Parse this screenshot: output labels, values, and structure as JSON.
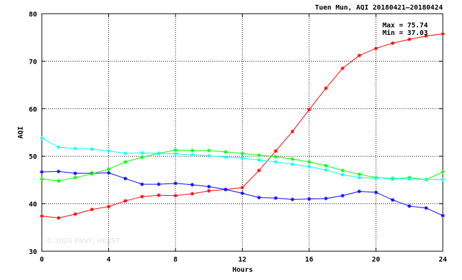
{
  "chart_data": {
    "type": "line",
    "title": "Tuen Mun, AQI 20180421–20180424",
    "xlabel": "Hours",
    "ylabel": "AQI",
    "xlim": [
      0,
      24
    ],
    "ylim": [
      30,
      80
    ],
    "xticks": [
      0,
      4,
      8,
      12,
      16,
      20,
      24
    ],
    "yticks": [
      30,
      40,
      50,
      60,
      70,
      80
    ],
    "grid": true,
    "max_label": "Max = 75.74",
    "min_label": "Min = 37.03",
    "watermark": "© 2026  ENVF, HKUST",
    "x": [
      0,
      1,
      2,
      3,
      4,
      5,
      6,
      7,
      8,
      9,
      10,
      11,
      12,
      13,
      14,
      15,
      16,
      17,
      18,
      19,
      20,
      21,
      22,
      23,
      24
    ],
    "series": [
      {
        "color": "#ff0000",
        "values": [
          37.4,
          37.0,
          37.8,
          38.8,
          39.4,
          40.6,
          41.5,
          41.8,
          41.7,
          42.1,
          42.7,
          43.0,
          43.4,
          47.0,
          51.1,
          55.2,
          59.8,
          64.3,
          68.5,
          71.2,
          72.7,
          73.8,
          74.6,
          75.3,
          75.74
        ]
      },
      {
        "color": "#0000ff",
        "values": [
          46.7,
          46.8,
          46.4,
          46.4,
          46.5,
          45.3,
          44.1,
          44.1,
          44.3,
          44.0,
          43.6,
          43.0,
          42.2,
          41.3,
          41.2,
          40.9,
          41.0,
          41.1,
          41.7,
          42.6,
          42.4,
          40.8,
          39.5,
          39.1,
          37.5
        ]
      },
      {
        "color": "#00ff00",
        "values": [
          45.2,
          44.8,
          45.5,
          46.3,
          47.3,
          48.8,
          49.8,
          50.6,
          51.3,
          51.2,
          51.2,
          50.9,
          50.6,
          50.2,
          49.9,
          49.4,
          48.8,
          48.0,
          47.0,
          46.2,
          45.5,
          45.2,
          45.5,
          45.1,
          46.7
        ]
      },
      {
        "color": "#00ffff",
        "values": [
          53.8,
          51.9,
          51.6,
          51.5,
          51.1,
          50.6,
          50.7,
          50.6,
          50.5,
          50.3,
          50.1,
          49.8,
          49.6,
          49.2,
          48.8,
          48.3,
          47.8,
          47.1,
          46.1,
          45.5,
          45.4,
          45.4,
          45.2,
          45.1,
          45.1
        ]
      }
    ]
  }
}
